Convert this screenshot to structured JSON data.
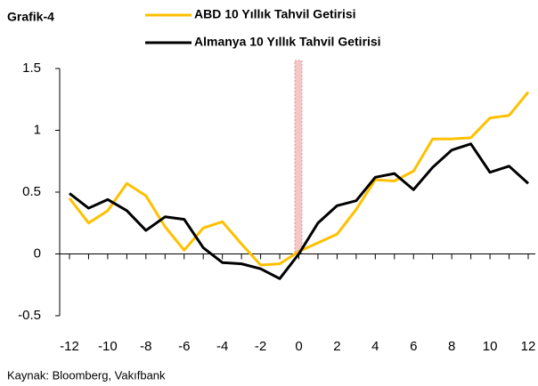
{
  "chart_data": {
    "type": "line",
    "title": "Grafik-4",
    "source": "Kaynak: Bloomberg, Vakıfbank",
    "x": [
      -12,
      -11,
      -10,
      -9,
      -8,
      -7,
      -6,
      -5,
      -4,
      -3,
      -2,
      -1,
      0,
      1,
      2,
      3,
      4,
      5,
      6,
      7,
      8,
      9,
      10,
      11,
      12
    ],
    "series": [
      {
        "name": "ABD 10 Yıllık Tahvil Getirisi",
        "color": "#ffc000",
        "values": [
          0.45,
          0.25,
          0.35,
          0.57,
          0.47,
          0.22,
          0.03,
          0.21,
          0.26,
          0.08,
          -0.09,
          -0.08,
          0.02,
          0.09,
          0.16,
          0.36,
          0.6,
          0.59,
          0.67,
          0.93,
          0.93,
          0.94,
          1.1,
          1.12,
          1.31
        ]
      },
      {
        "name": "Almanya 10 Yıllık Tahvil Getirisi",
        "color": "#000000",
        "values": [
          0.49,
          0.37,
          0.44,
          0.35,
          0.19,
          0.3,
          0.28,
          0.05,
          -0.07,
          -0.08,
          -0.12,
          -0.2,
          0.0,
          0.25,
          0.39,
          0.43,
          0.62,
          0.65,
          0.52,
          0.7,
          0.84,
          0.89,
          0.66,
          0.71,
          0.57
        ]
      }
    ],
    "xlim": [
      -12,
      12
    ],
    "xticks": [
      -12,
      -10,
      -8,
      -6,
      -4,
      -2,
      0,
      2,
      4,
      6,
      8,
      10,
      12
    ],
    "xminorticks": [
      -12,
      -11,
      -10,
      -9,
      -8,
      -7,
      -6,
      -5,
      -4,
      -3,
      -2,
      -1,
      0,
      1,
      2,
      3,
      4,
      5,
      6,
      7,
      8,
      9,
      10,
      11,
      12
    ],
    "ylim": [
      -0.5,
      1.5
    ],
    "yticks": [
      1.5,
      1,
      0.5,
      0,
      -0.5
    ],
    "grid": false,
    "legend": "top"
  }
}
